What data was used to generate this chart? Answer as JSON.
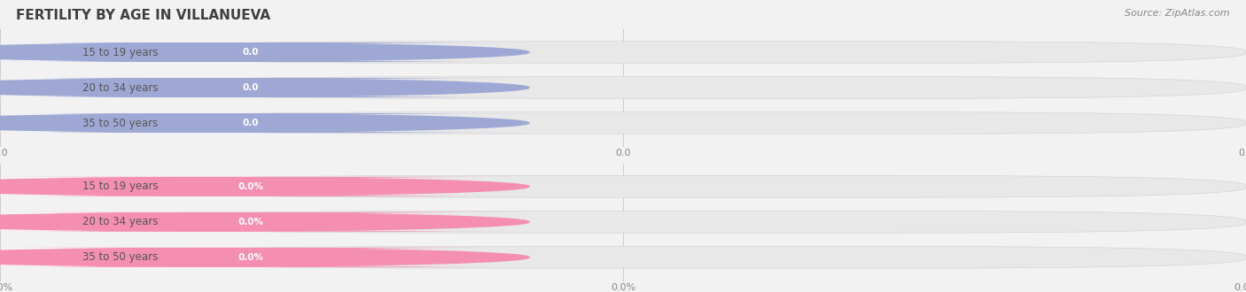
{
  "title": "FERTILITY BY AGE IN VILLANUEVA",
  "source_text": "Source: ZipAtlas.com",
  "top_section": {
    "categories": [
      "15 to 19 years",
      "20 to 34 years",
      "35 to 50 years"
    ],
    "values": [
      0.0,
      0.0,
      0.0
    ],
    "bar_color": "#9fa8d4",
    "tick_fmt": "0.0"
  },
  "bottom_section": {
    "categories": [
      "15 to 19 years",
      "20 to 34 years",
      "35 to 50 years"
    ],
    "values": [
      0.0,
      0.0,
      0.0
    ],
    "bar_color": "#f48fb1",
    "tick_fmt": "0.0%"
  },
  "bg_color": "#f2f2f2",
  "bar_bg_color": "#e8e8e8",
  "title_fontsize": 11,
  "label_fontsize": 8.5,
  "tick_fontsize": 8,
  "source_fontsize": 8
}
